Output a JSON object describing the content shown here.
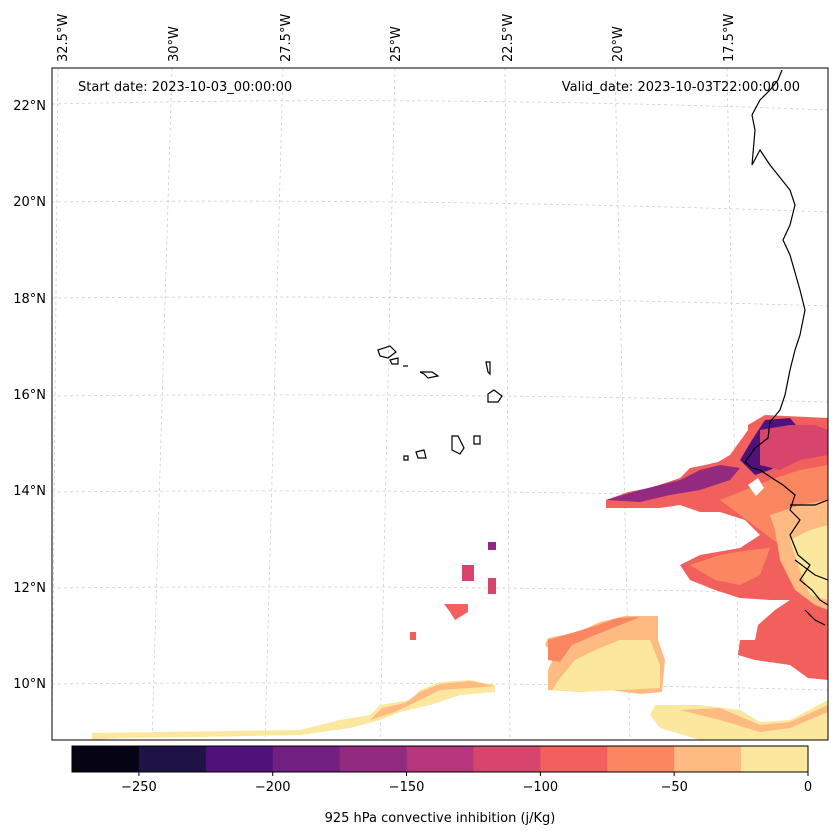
{
  "map": {
    "start_date": "Start date: 2023-10-03_00:00:00",
    "valid_date": "Valid_date: 2023-10-03T22:00:00.00",
    "lon_labels": [
      "32.5°W",
      "30°W",
      "27.5°W",
      "25°W",
      "22.5°W",
      "20°W",
      "17.5°W"
    ],
    "lat_labels": [
      "22°N",
      "20°N",
      "18°N",
      "16°N",
      "14°N",
      "12°N",
      "10°N"
    ]
  },
  "colorbar": {
    "label": "925 hPa convective inhibition (j/Kg)",
    "ticks": [
      "−250",
      "−200",
      "−150",
      "−100",
      "−50",
      "0"
    ],
    "range": [
      -275,
      0
    ],
    "step": 25,
    "colors": [
      "#050314",
      "#1f1246",
      "#4f127b",
      "#711f81",
      "#922a80",
      "#b5367a",
      "#d8456c",
      "#f1605d",
      "#fb8761",
      "#febb81",
      "#fce79f"
    ]
  },
  "colors": {
    "coast": "#000000",
    "grid": "#cfcfcf"
  }
}
